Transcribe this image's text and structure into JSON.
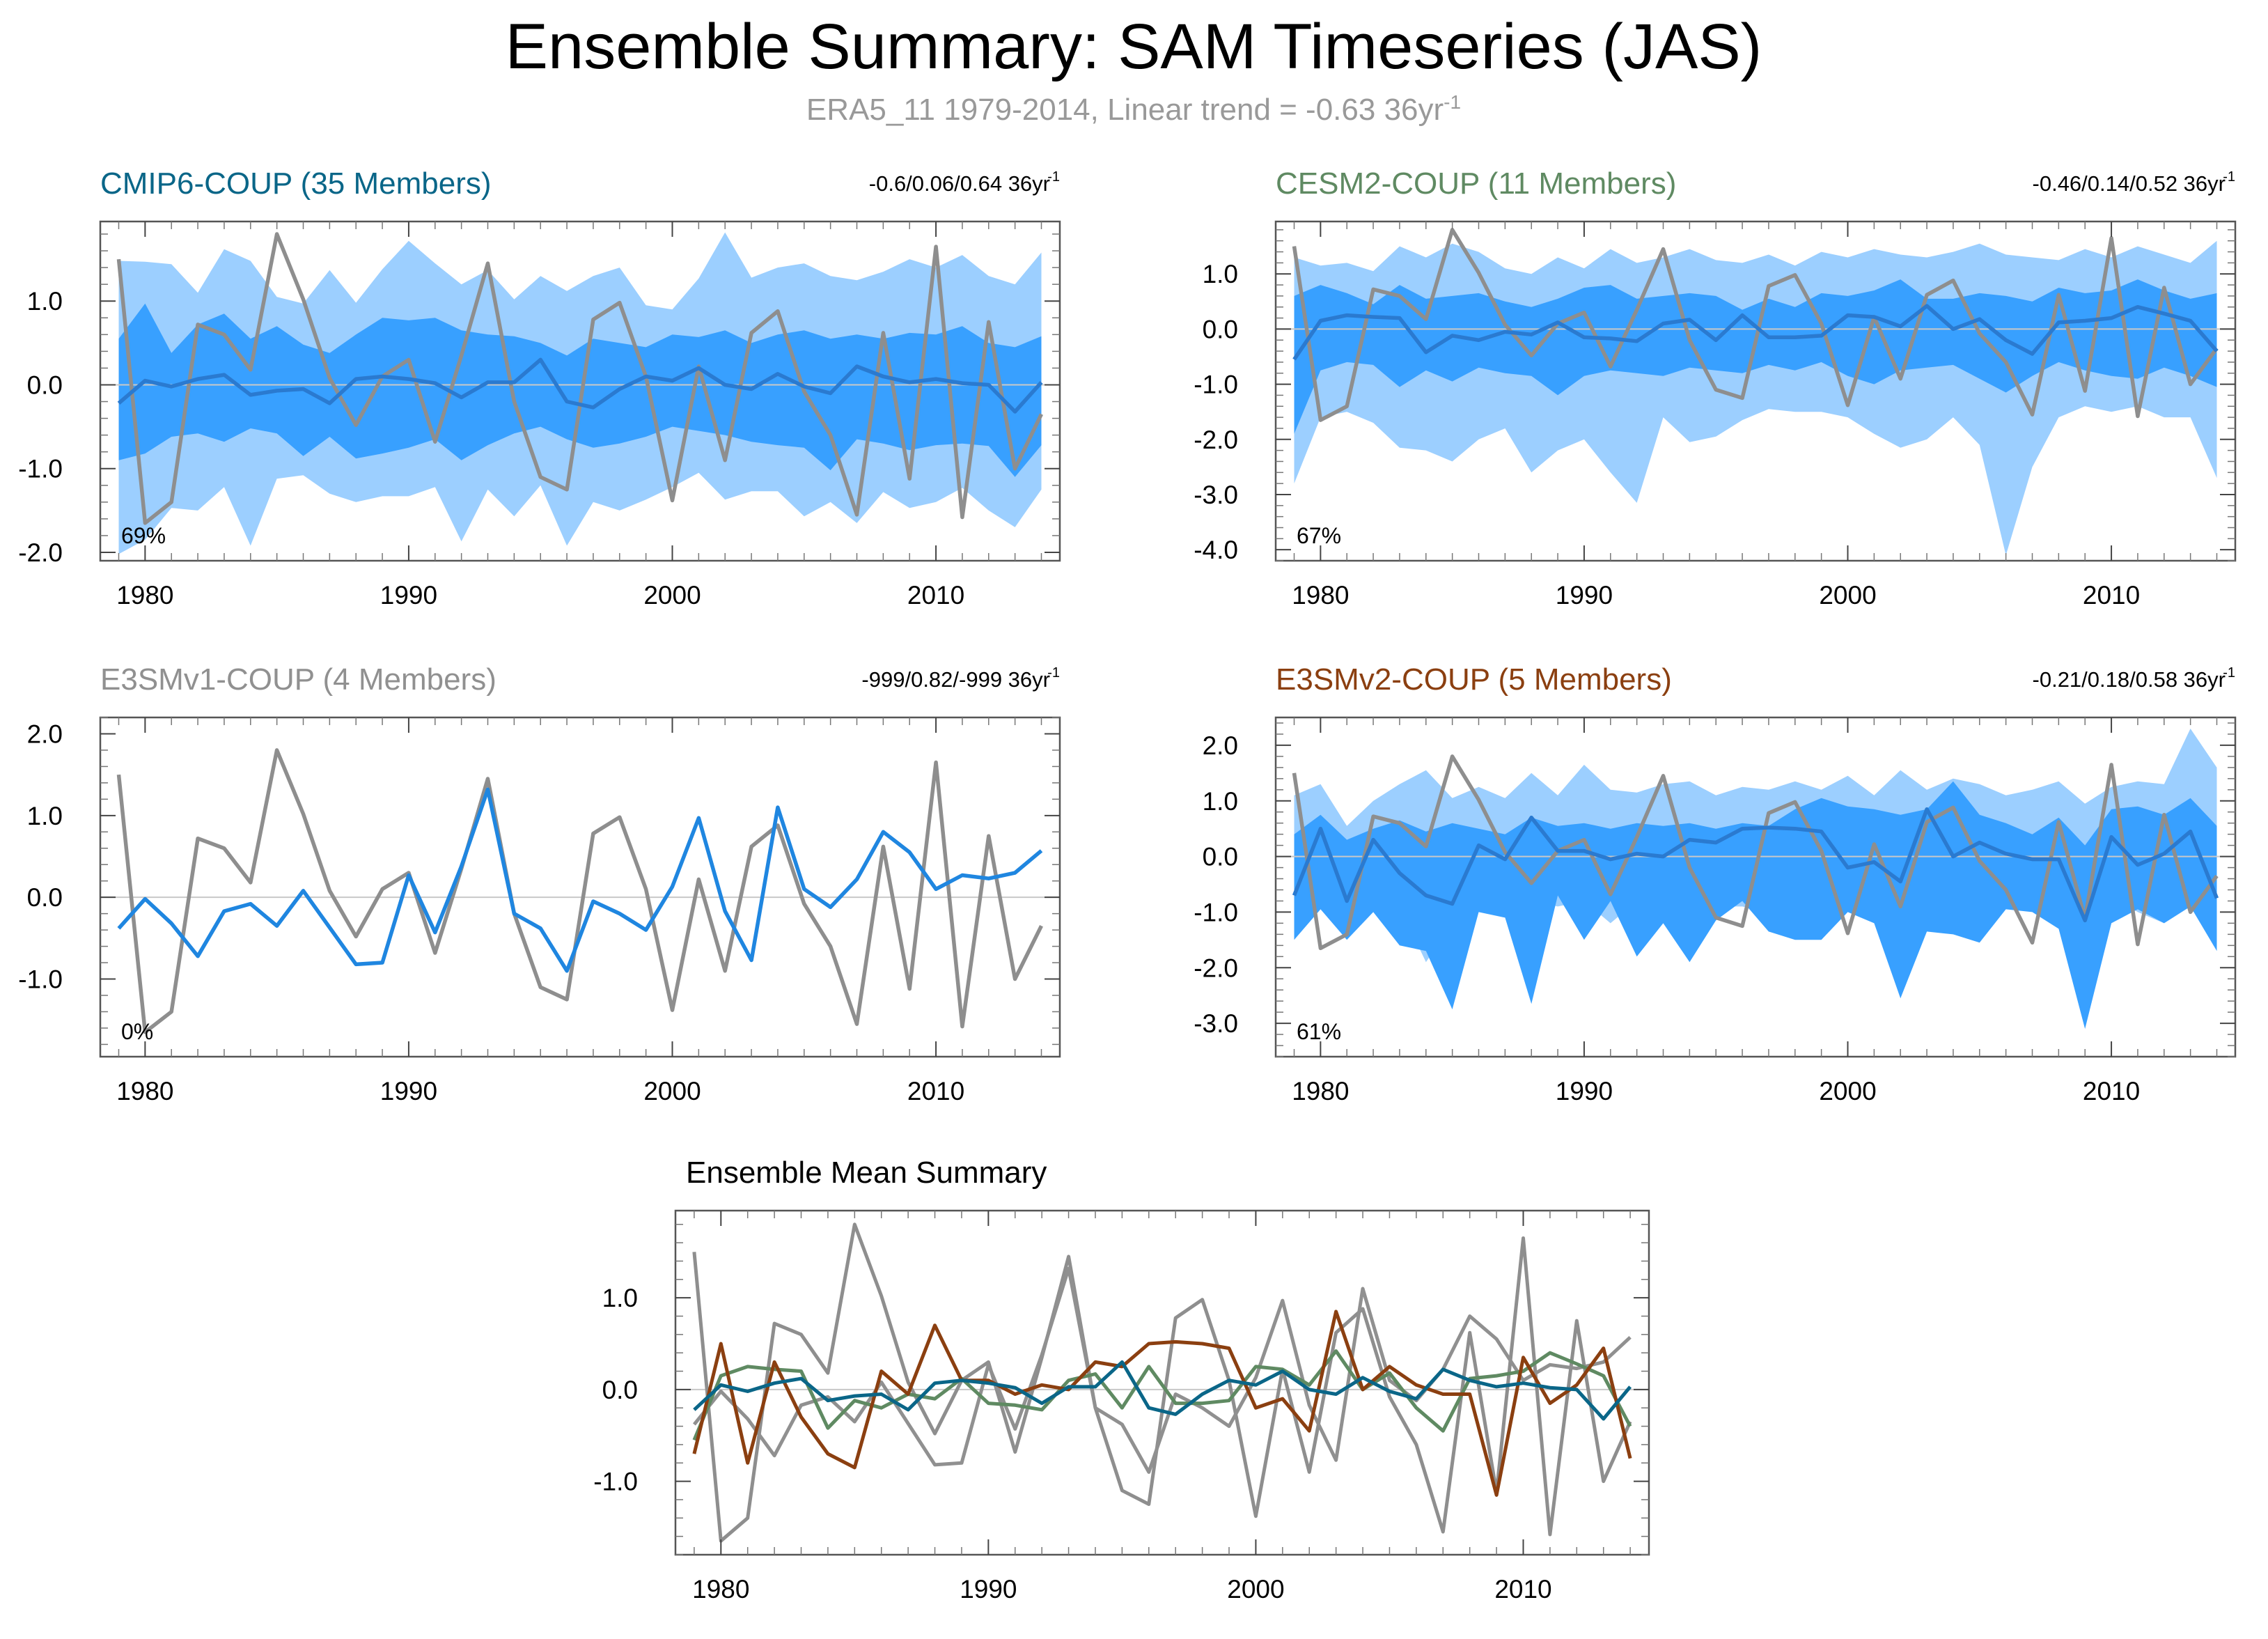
{
  "title": "Ensemble Summary: SAM Timeseries (JAS)",
  "subtitle": {
    "prefix": "ERA5_11 1979-2014, Linear trend = -0.63 36yr",
    "exp": "-1"
  },
  "colors": {
    "obs": "#8e8e8e",
    "band_outer": "#9ccfff",
    "band_inner": "#38a0ff",
    "mean_line": "#2a7ad0",
    "cmip6": "#0a6688",
    "cesm2": "#5f8a62",
    "e3smv1": "#909090",
    "e3smv2": "#8b3f10",
    "e3smv1_line": "#1f86e0"
  },
  "chart_data": [
    {
      "id": "cmip6",
      "type": "area",
      "title": "CMIP6-COUP (35 Members)",
      "title_color": "#0a6688",
      "trend": {
        "text": "-0.6/0.06/0.64 36yr",
        "exp": "-1"
      },
      "percent": "69%",
      "xlim": [
        1978.3,
        2014.7
      ],
      "ylim": [
        -2.1,
        1.95
      ],
      "xticks": [
        1980,
        1990,
        2000,
        2010
      ],
      "yticks": [
        1.0,
        0.0,
        -1.0,
        -2.0
      ],
      "yticklabels": [
        "1.0",
        "0.0",
        "-1.0",
        "-2.0"
      ],
      "x_start": 1979,
      "band_outer_top": [
        1.48,
        1.47,
        1.44,
        1.1,
        1.62,
        1.48,
        1.05,
        0.97,
        1.37,
        0.98,
        1.38,
        1.72,
        1.45,
        1.2,
        1.37,
        1.02,
        1.3,
        1.12,
        1.3,
        1.4,
        0.95,
        0.9,
        1.27,
        1.82,
        1.28,
        1.4,
        1.45,
        1.3,
        1.25,
        1.35,
        1.5,
        1.4,
        1.55,
        1.3,
        1.2,
        1.58
      ],
      "band_outer_bot": [
        -2.02,
        -1.85,
        -1.47,
        -1.5,
        -1.22,
        -1.92,
        -1.12,
        -1.08,
        -1.3,
        -1.4,
        -1.33,
        -1.33,
        -1.22,
        -1.87,
        -1.25,
        -1.57,
        -1.2,
        -1.92,
        -1.4,
        -1.5,
        -1.37,
        -1.22,
        -1.05,
        -1.37,
        -1.27,
        -1.27,
        -1.57,
        -1.4,
        -1.65,
        -1.28,
        -1.47,
        -1.4,
        -1.23,
        -1.5,
        -1.7,
        -1.25
      ],
      "band_inner_top": [
        0.55,
        0.97,
        0.38,
        0.72,
        0.85,
        0.55,
        0.7,
        0.48,
        0.38,
        0.6,
        0.8,
        0.77,
        0.8,
        0.65,
        0.6,
        0.58,
        0.5,
        0.35,
        0.55,
        0.5,
        0.45,
        0.6,
        0.57,
        0.65,
        0.5,
        0.6,
        0.65,
        0.55,
        0.6,
        0.55,
        0.62,
        0.6,
        0.7,
        0.5,
        0.45,
        0.58
      ],
      "band_inner_bot": [
        -0.9,
        -0.82,
        -0.62,
        -0.58,
        -0.68,
        -0.52,
        -0.58,
        -0.85,
        -0.62,
        -0.88,
        -0.82,
        -0.75,
        -0.65,
        -0.9,
        -0.72,
        -0.58,
        -0.5,
        -0.65,
        -0.75,
        -0.7,
        -0.62,
        -0.5,
        -0.55,
        -0.6,
        -0.68,
        -0.72,
        -0.75,
        -1.02,
        -0.65,
        -0.7,
        -0.78,
        -0.72,
        -0.7,
        -0.73,
        -1.1,
        -0.72
      ],
      "ens_mean": [
        -0.22,
        0.05,
        -0.02,
        0.07,
        0.12,
        -0.12,
        -0.07,
        -0.05,
        -0.22,
        0.07,
        0.1,
        0.07,
        0.02,
        -0.15,
        0.03,
        0.03,
        0.3,
        -0.2,
        -0.27,
        -0.05,
        0.1,
        0.05,
        0.2,
        0.0,
        -0.05,
        0.13,
        -0.02,
        -0.1,
        0.22,
        0.1,
        0.03,
        0.07,
        0.02,
        0.0,
        -0.32,
        0.03
      ],
      "obs": [
        1.5,
        -1.65,
        -1.4,
        0.72,
        0.6,
        0.18,
        1.8,
        1.02,
        0.08,
        -0.48,
        0.1,
        0.3,
        -0.68,
        0.35,
        1.45,
        -0.2,
        -1.1,
        -1.25,
        0.78,
        0.98,
        0.1,
        -1.38,
        0.22,
        -0.9,
        0.62,
        0.88,
        -0.08,
        -0.6,
        -1.55,
        0.62,
        -1.12,
        1.65,
        -1.58,
        0.75,
        -1.0,
        -0.35
      ]
    },
    {
      "id": "cesm2",
      "type": "area",
      "title": "CESM2-COUP (11 Members)",
      "title_color": "#5f8a62",
      "trend": {
        "text": "-0.46/0.14/0.52 36yr",
        "exp": "-1"
      },
      "percent": "67%",
      "xlim": [
        1978.3,
        2014.7
      ],
      "ylim": [
        -4.2,
        1.95
      ],
      "xticks": [
        1980,
        1990,
        2000,
        2010
      ],
      "yticks": [
        1.0,
        0.0,
        -1.0,
        -2.0,
        -3.0,
        -4.0
      ],
      "yticklabels": [
        "1.0",
        "0.0",
        "-1.0",
        "-2.0",
        "-3.0",
        "-4.0"
      ],
      "x_start": 1979,
      "band_outer_top": [
        1.3,
        1.15,
        1.2,
        1.05,
        1.5,
        1.3,
        1.55,
        1.4,
        1.1,
        1.0,
        1.3,
        1.1,
        1.45,
        1.2,
        1.3,
        1.45,
        1.25,
        1.2,
        1.35,
        1.15,
        1.4,
        1.3,
        1.45,
        1.35,
        1.3,
        1.4,
        1.55,
        1.35,
        1.3,
        1.25,
        1.45,
        1.3,
        1.5,
        1.35,
        1.2,
        1.6
      ],
      "band_outer_bot": [
        -2.8,
        -1.6,
        -1.5,
        -1.7,
        -2.15,
        -2.2,
        -2.4,
        -2.0,
        -1.8,
        -2.6,
        -2.2,
        -2.0,
        -2.6,
        -3.15,
        -1.6,
        -2.05,
        -1.95,
        -1.65,
        -1.45,
        -1.5,
        -1.5,
        -1.6,
        -1.9,
        -2.15,
        -2.0,
        -1.6,
        -2.1,
        -4.1,
        -2.5,
        -1.6,
        -1.4,
        -1.5,
        -1.4,
        -1.6,
        -1.6,
        -2.7
      ],
      "band_inner_top": [
        0.6,
        0.8,
        0.65,
        0.45,
        0.8,
        0.55,
        0.6,
        0.65,
        0.5,
        0.4,
        0.55,
        0.75,
        0.8,
        0.55,
        0.6,
        0.65,
        0.6,
        0.35,
        0.55,
        0.4,
        0.65,
        0.6,
        0.7,
        0.9,
        0.55,
        0.55,
        0.65,
        0.6,
        0.5,
        0.75,
        0.65,
        0.7,
        0.9,
        0.7,
        0.55,
        0.65
      ],
      "band_inner_bot": [
        -1.9,
        -0.75,
        -0.6,
        -0.65,
        -1.05,
        -0.75,
        -0.95,
        -0.7,
        -0.8,
        -0.85,
        -1.2,
        -0.85,
        -0.75,
        -0.8,
        -0.85,
        -0.7,
        -0.75,
        -0.8,
        -0.65,
        -0.75,
        -0.6,
        -0.85,
        -1.0,
        -0.75,
        -0.7,
        -0.65,
        -0.9,
        -1.15,
        -0.85,
        -0.6,
        -0.75,
        -0.85,
        -0.9,
        -0.7,
        -0.85,
        -1.05
      ],
      "ens_mean": [
        -0.55,
        0.15,
        0.25,
        0.22,
        0.2,
        -0.42,
        -0.12,
        -0.2,
        -0.05,
        -0.1,
        0.12,
        -0.15,
        -0.17,
        -0.22,
        0.1,
        0.17,
        -0.2,
        0.25,
        -0.15,
        -0.15,
        -0.12,
        0.25,
        0.22,
        0.05,
        0.42,
        0.0,
        0.18,
        -0.2,
        -0.45,
        0.12,
        0.15,
        0.2,
        0.4,
        0.28,
        0.15,
        -0.4
      ],
      "obs": [
        1.5,
        -1.65,
        -1.4,
        0.72,
        0.6,
        0.18,
        1.8,
        1.02,
        0.08,
        -0.48,
        0.1,
        0.3,
        -0.68,
        0.35,
        1.45,
        -0.2,
        -1.1,
        -1.25,
        0.78,
        0.98,
        0.1,
        -1.38,
        0.22,
        -0.9,
        0.62,
        0.88,
        -0.08,
        -0.6,
        -1.55,
        0.62,
        -1.12,
        1.65,
        -1.58,
        0.75,
        -1.0,
        -0.35
      ]
    },
    {
      "id": "e3smv1",
      "type": "line",
      "title": "E3SMv1-COUP (4 Members)",
      "title_color": "#909090",
      "trend": {
        "text": "-999/0.82/-999 36yr",
        "exp": "-1"
      },
      "percent": "0%",
      "xlim": [
        1978.3,
        2014.7
      ],
      "ylim": [
        -1.95,
        2.2
      ],
      "xticks": [
        1980,
        1990,
        2000,
        2010
      ],
      "yticks": [
        2.0,
        1.0,
        0.0,
        -1.0
      ],
      "yticklabels": [
        "2.0",
        "1.0",
        "0.0",
        "-1.0"
      ],
      "x_start": 1979,
      "ens_mean": [
        -0.38,
        -0.02,
        -0.32,
        -0.72,
        -0.17,
        -0.08,
        -0.35,
        0.08,
        -0.37,
        -0.82,
        -0.8,
        0.27,
        -0.43,
        0.38,
        1.32,
        -0.2,
        -0.38,
        -0.9,
        -0.05,
        -0.2,
        -0.4,
        0.13,
        0.97,
        -0.17,
        -0.77,
        1.1,
        0.1,
        -0.12,
        0.22,
        0.8,
        0.55,
        0.1,
        0.27,
        0.23,
        0.3,
        0.57
      ],
      "obs": [
        1.5,
        -1.65,
        -1.4,
        0.72,
        0.6,
        0.18,
        1.8,
        1.02,
        0.08,
        -0.48,
        0.1,
        0.3,
        -0.68,
        0.35,
        1.45,
        -0.2,
        -1.1,
        -1.25,
        0.78,
        0.98,
        0.1,
        -1.38,
        0.22,
        -0.9,
        0.62,
        0.88,
        -0.08,
        -0.6,
        -1.55,
        0.62,
        -1.12,
        1.65,
        -1.58,
        0.75,
        -1.0,
        -0.35
      ]
    },
    {
      "id": "e3smv2",
      "type": "area",
      "title": "E3SMv2-COUP (5 Members)",
      "title_color": "#8b3f10",
      "trend": {
        "text": "-0.21/0.18/0.58 36yr",
        "exp": "-1"
      },
      "percent": "61%",
      "xlim": [
        1978.3,
        2014.7
      ],
      "ylim": [
        -3.6,
        2.5
      ],
      "xticks": [
        1980,
        1990,
        2000,
        2010
      ],
      "yticks": [
        2.0,
        1.0,
        0.0,
        -1.0,
        -2.0,
        -3.0
      ],
      "yticklabels": [
        "2.0",
        "1.0",
        "0.0",
        "-1.0",
        "-2.0",
        "-3.0"
      ],
      "x_start": 1979,
      "band_outer_top": [
        1.1,
        1.3,
        0.55,
        1.0,
        1.3,
        1.55,
        1.05,
        1.25,
        1.05,
        1.5,
        1.1,
        1.65,
        1.2,
        1.15,
        1.3,
        1.35,
        1.1,
        1.25,
        1.2,
        1.35,
        1.2,
        1.45,
        1.1,
        1.55,
        1.2,
        1.4,
        1.3,
        1.1,
        1.2,
        1.35,
        0.95,
        1.25,
        1.35,
        1.3,
        2.3,
        1.6
      ],
      "band_outer_bot": [
        -1.2,
        -0.65,
        -1.4,
        -0.8,
        -0.9,
        -1.9,
        -1.2,
        -0.85,
        -0.6,
        -0.8,
        -0.9,
        -0.8,
        -1.2,
        -0.8,
        -0.9,
        -0.6,
        -0.9,
        -0.9,
        -1.0,
        -0.7,
        -0.8,
        -0.7,
        -1.2,
        -1.6,
        -0.9,
        -1.0,
        -0.8,
        -0.7,
        -0.9,
        -0.9,
        -2.3,
        -0.7,
        -1.0,
        -1.2,
        -0.6,
        -1.2
      ],
      "band_inner_top": [
        0.4,
        0.75,
        0.3,
        0.5,
        0.65,
        0.45,
        0.6,
        0.5,
        0.4,
        0.7,
        0.55,
        0.6,
        0.5,
        0.6,
        0.55,
        0.6,
        0.5,
        0.6,
        0.55,
        0.85,
        1.05,
        0.9,
        0.85,
        0.75,
        0.85,
        1.35,
        0.75,
        0.6,
        0.4,
        0.7,
        0.2,
        0.85,
        0.9,
        0.75,
        1.05,
        0.55
      ],
      "band_inner_bot": [
        -1.5,
        -0.95,
        -1.5,
        -1.0,
        -1.6,
        -1.7,
        -2.75,
        -1.0,
        -1.1,
        -2.65,
        -0.7,
        -1.5,
        -0.8,
        -1.8,
        -1.2,
        -1.9,
        -1.15,
        -0.8,
        -1.35,
        -1.5,
        -1.5,
        -1.0,
        -1.2,
        -2.55,
        -1.35,
        -1.4,
        -1.55,
        -0.95,
        -1.0,
        -1.3,
        -3.1,
        -1.2,
        -0.95,
        -1.2,
        -0.9,
        -1.7
      ],
      "ens_mean": [
        -0.7,
        0.5,
        -0.8,
        0.3,
        -0.3,
        -0.7,
        -0.85,
        0.2,
        -0.05,
        0.7,
        0.1,
        0.1,
        -0.05,
        0.05,
        0.0,
        0.3,
        0.25,
        0.5,
        0.52,
        0.5,
        0.45,
        -0.2,
        -0.1,
        -0.45,
        0.85,
        0.0,
        0.25,
        0.05,
        -0.05,
        -0.05,
        -1.15,
        0.35,
        -0.15,
        0.05,
        0.45,
        -0.75
      ],
      "obs": [
        1.5,
        -1.65,
        -1.4,
        0.72,
        0.6,
        0.18,
        1.8,
        1.02,
        0.08,
        -0.48,
        0.1,
        0.3,
        -0.68,
        0.35,
        1.45,
        -0.2,
        -1.1,
        -1.25,
        0.78,
        0.98,
        0.1,
        -1.38,
        0.22,
        -0.9,
        0.62,
        0.88,
        -0.08,
        -0.6,
        -1.55,
        0.62,
        -1.12,
        1.65,
        -1.58,
        0.75,
        -1.0,
        -0.35
      ]
    },
    {
      "id": "summary",
      "type": "line",
      "title": "Ensemble Mean Summary",
      "title_color": "#000000",
      "xlim": [
        1978.3,
        2014.7
      ],
      "ylim": [
        -1.8,
        1.95
      ],
      "xticks": [
        1980,
        1990,
        2000,
        2010
      ],
      "yticks": [
        1.0,
        0.0,
        -1.0
      ],
      "yticklabels": [
        "1.0",
        "0.0",
        "-1.0"
      ],
      "x_start": 1979,
      "series": [
        {
          "name": "ERA5",
          "color": "#8e8e8e",
          "values": [
            1.5,
            -1.65,
            -1.4,
            0.72,
            0.6,
            0.18,
            1.8,
            1.02,
            0.08,
            -0.48,
            0.1,
            0.3,
            -0.68,
            0.35,
            1.45,
            -0.2,
            -1.1,
            -1.25,
            0.78,
            0.98,
            0.1,
            -1.38,
            0.22,
            -0.9,
            0.62,
            0.88,
            -0.08,
            -0.6,
            -1.55,
            0.62,
            -1.12,
            1.65,
            -1.58,
            0.75,
            -1.0,
            -0.35
          ]
        },
        {
          "name": "E3SMv1-COUP",
          "color": "#909090",
          "values": [
            -0.38,
            -0.02,
            -0.32,
            -0.72,
            -0.17,
            -0.08,
            -0.35,
            0.08,
            -0.37,
            -0.82,
            -0.8,
            0.27,
            -0.43,
            0.38,
            1.32,
            -0.2,
            -0.38,
            -0.9,
            -0.05,
            -0.2,
            -0.4,
            0.13,
            0.97,
            -0.17,
            -0.77,
            1.1,
            0.1,
            -0.12,
            0.22,
            0.8,
            0.55,
            0.1,
            0.27,
            0.23,
            0.3,
            0.57
          ]
        },
        {
          "name": "CESM2-COUP",
          "color": "#5f8a62",
          "values": [
            -0.55,
            0.15,
            0.25,
            0.22,
            0.2,
            -0.42,
            -0.12,
            -0.2,
            -0.05,
            -0.1,
            0.12,
            -0.15,
            -0.17,
            -0.22,
            0.1,
            0.17,
            -0.2,
            0.25,
            -0.15,
            -0.15,
            -0.12,
            0.25,
            0.22,
            0.05,
            0.42,
            0.0,
            0.18,
            -0.2,
            -0.45,
            0.12,
            0.15,
            0.2,
            0.4,
            0.28,
            0.15,
            -0.4
          ]
        },
        {
          "name": "E3SMv2-COUP",
          "color": "#8b3f10",
          "values": [
            -0.7,
            0.5,
            -0.8,
            0.3,
            -0.3,
            -0.7,
            -0.85,
            0.2,
            -0.05,
            0.7,
            0.1,
            0.1,
            -0.05,
            0.05,
            0.0,
            0.3,
            0.25,
            0.5,
            0.52,
            0.5,
            0.45,
            -0.2,
            -0.1,
            -0.45,
            0.85,
            0.0,
            0.25,
            0.05,
            -0.05,
            -0.05,
            -1.15,
            0.35,
            -0.15,
            0.05,
            0.45,
            -0.75
          ]
        },
        {
          "name": "CMIP6-COUP",
          "color": "#0a6688",
          "values": [
            -0.22,
            0.05,
            -0.02,
            0.07,
            0.12,
            -0.12,
            -0.07,
            -0.05,
            -0.22,
            0.07,
            0.1,
            0.07,
            0.02,
            -0.15,
            0.03,
            0.03,
            0.3,
            -0.2,
            -0.27,
            -0.05,
            0.1,
            0.05,
            0.2,
            0.0,
            -0.05,
            0.13,
            -0.02,
            -0.1,
            0.22,
            0.1,
            0.03,
            0.07,
            0.02,
            0.0,
            -0.32,
            0.03
          ]
        }
      ]
    }
  ]
}
